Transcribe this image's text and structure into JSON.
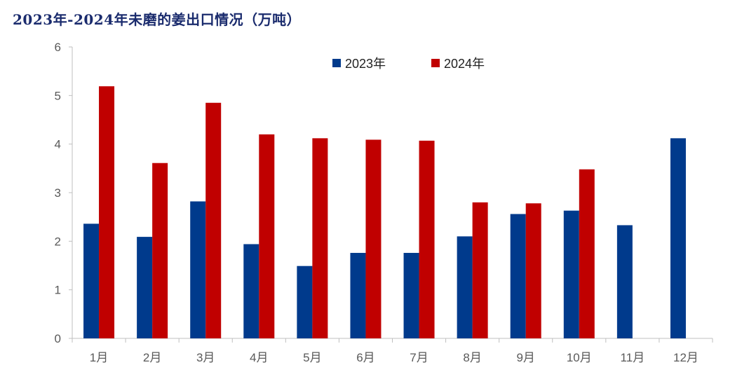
{
  "chart_data": {
    "type": "bar",
    "title": "2023年-2024年未磨的姜出口情况（万吨）",
    "categories": [
      "1月",
      "2月",
      "3月",
      "4月",
      "5月",
      "6月",
      "7月",
      "8月",
      "9月",
      "10月",
      "11月",
      "12月"
    ],
    "series": [
      {
        "name": "2023年",
        "color": "#003a8c",
        "values": [
          2.36,
          2.09,
          2.82,
          1.94,
          1.49,
          1.76,
          1.76,
          2.1,
          2.56,
          2.63,
          2.33,
          4.12
        ]
      },
      {
        "name": "2024年",
        "color": "#c00000",
        "values": [
          5.19,
          3.61,
          4.85,
          4.2,
          4.12,
          4.09,
          4.07,
          2.8,
          2.78,
          3.48,
          null,
          null
        ]
      }
    ],
    "yticks": [
      "0",
      "1",
      "2",
      "3",
      "4",
      "5",
      "6"
    ],
    "ylim": [
      0,
      6
    ],
    "grid": false,
    "legend_position": "top-center"
  }
}
